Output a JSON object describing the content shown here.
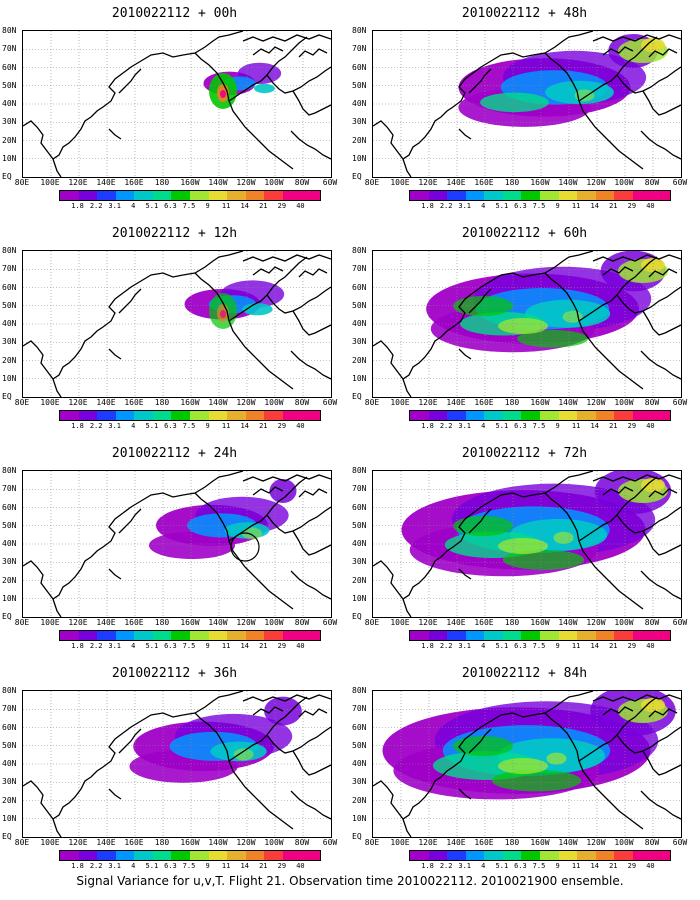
{
  "footer": "Signal Variance for u,v,T. Flight 21. Observation time 2010022112. 2010021900 ensemble.",
  "lat_labels": [
    "80N",
    "70N",
    "60N",
    "50N",
    "40N",
    "30N",
    "20N",
    "10N",
    "EQ"
  ],
  "lon_labels": [
    "80E",
    "100E",
    "120E",
    "140E",
    "160E",
    "180",
    "160W",
    "140W",
    "120W",
    "100W",
    "80W",
    "60W"
  ],
  "colorbar": {
    "values": [
      "1.8",
      "2.2",
      "3.1",
      "4",
      "5.1",
      "6.3",
      "7.5",
      "9",
      "11",
      "14",
      "21",
      "29",
      "40"
    ],
    "colors": [
      "#a000c8",
      "#7800dc",
      "#1e3cff",
      "#0096ff",
      "#00c8c8",
      "#00dc8c",
      "#00c800",
      "#a0e632",
      "#e6dc32",
      "#e6af2d",
      "#f08228",
      "#fa3c3c",
      "#f00082"
    ]
  },
  "panels": [
    {
      "title": "2010022112 + 00h",
      "spread": 0.05,
      "intensity": 0.9,
      "circle": false
    },
    {
      "title": "2010022112 + 48h",
      "spread": 0.55,
      "intensity": 0.55,
      "circle": false
    },
    {
      "title": "2010022112 + 12h",
      "spread": 0.15,
      "intensity": 0.7,
      "circle": false
    },
    {
      "title": "2010022112 + 60h",
      "spread": 0.72,
      "intensity": 0.6,
      "circle": false
    },
    {
      "title": "2010022112 + 24h",
      "spread": 0.3,
      "intensity": 0.55,
      "circle": true
    },
    {
      "title": "2010022112 + 72h",
      "spread": 0.85,
      "intensity": 0.65,
      "circle": false
    },
    {
      "title": "2010022112 + 36h",
      "spread": 0.42,
      "intensity": 0.55,
      "circle": false
    },
    {
      "title": "2010022112 + 84h",
      "spread": 0.95,
      "intensity": 0.7,
      "circle": false
    }
  ]
}
